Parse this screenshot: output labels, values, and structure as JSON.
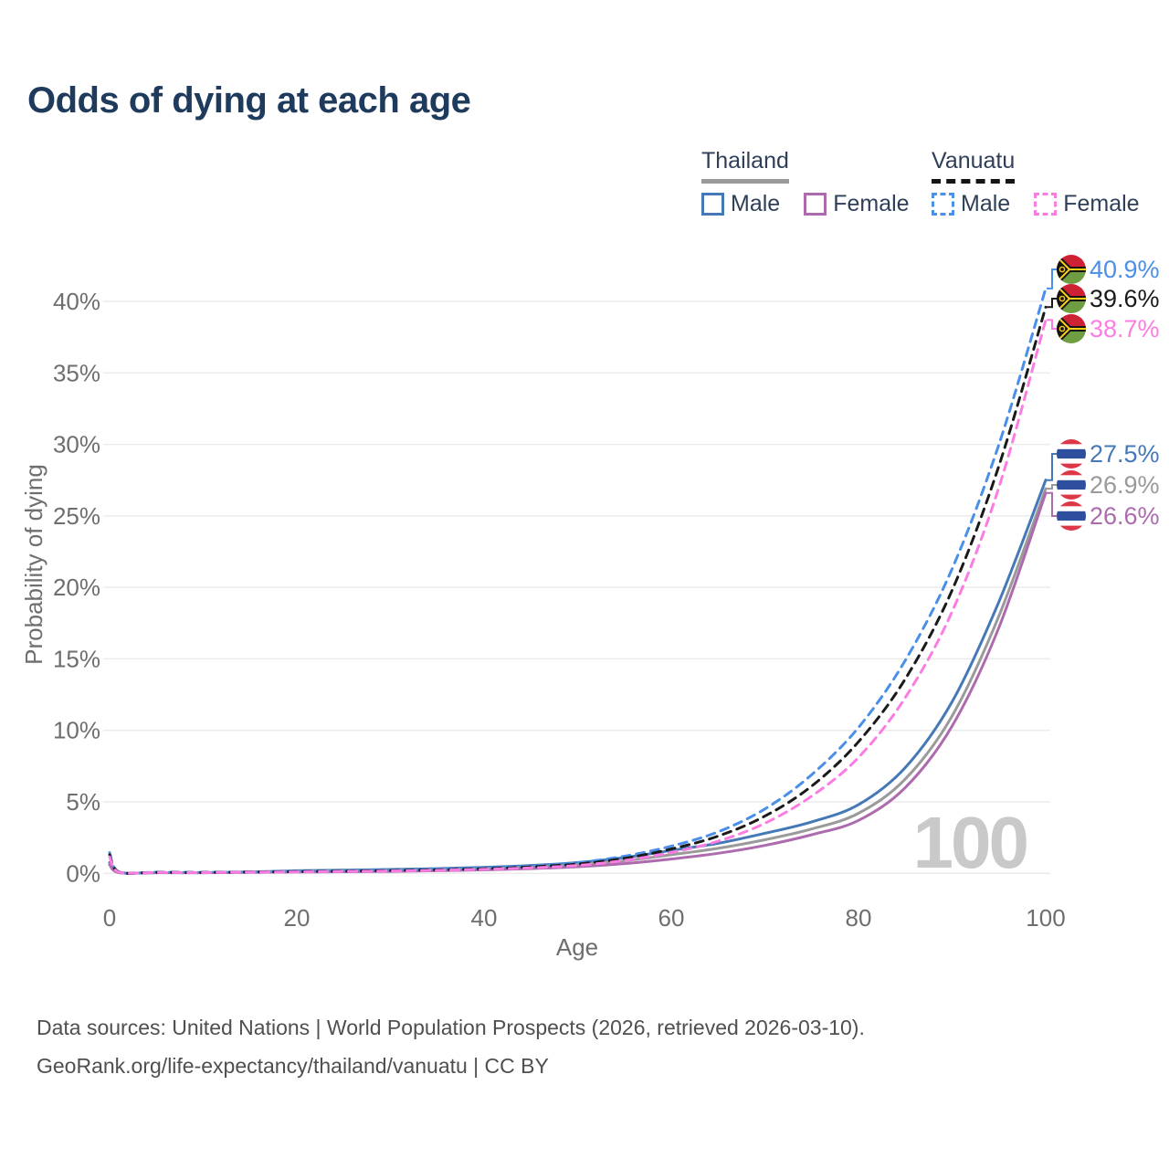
{
  "title": "Odds of dying at each age",
  "legend": {
    "groups": [
      {
        "title": "Thailand",
        "line_style": "solid",
        "underline_color": "#9a9a9a",
        "items": [
          {
            "label": "Male",
            "color": "#4478b6",
            "dashed": false
          },
          {
            "label": "Female",
            "color": "#ad6bae",
            "dashed": false
          }
        ]
      },
      {
        "title": "Vanuatu",
        "line_style": "dashed",
        "underline_color": "#141414",
        "items": [
          {
            "label": "Male",
            "color": "#4a8fe8",
            "dashed": true
          },
          {
            "label": "Female",
            "color": "#fb7ce2",
            "dashed": true
          }
        ]
      }
    ]
  },
  "chart_data": {
    "type": "line",
    "title": "Odds of dying at each age",
    "xlabel": "Age",
    "ylabel": "Probability of dying",
    "xlim": [
      0,
      100
    ],
    "ylim": [
      0,
      42.5
    ],
    "xticks": [
      0,
      20,
      40,
      60,
      80,
      100
    ],
    "yticks_percent": [
      0,
      5,
      10,
      15,
      20,
      25,
      30,
      35,
      40
    ],
    "grid": "horizontal",
    "legend_position": "top-right",
    "watermark": "100",
    "ages": [
      0,
      1,
      5,
      10,
      15,
      20,
      25,
      30,
      35,
      40,
      45,
      50,
      55,
      60,
      65,
      70,
      75,
      80,
      85,
      90,
      95,
      100
    ],
    "series": [
      {
        "name": "Vanuatu Male",
        "country": "vanuatu",
        "sex": "male",
        "color": "#4a8fe8",
        "dashed": true,
        "end_label": "40.9%",
        "values": [
          1.45,
          0.1,
          0.08,
          0.07,
          0.1,
          0.14,
          0.18,
          0.22,
          0.28,
          0.37,
          0.52,
          0.75,
          1.2,
          1.9,
          2.9,
          4.5,
          6.9,
          10.2,
          14.9,
          21.3,
          30.0,
          40.9
        ]
      },
      {
        "name": "Vanuatu Both sexes",
        "country": "vanuatu",
        "sex": "both",
        "color": "#1a1a1a",
        "dashed": true,
        "end_label": "39.6%",
        "values": [
          1.3,
          0.09,
          0.07,
          0.06,
          0.09,
          0.12,
          0.15,
          0.19,
          0.24,
          0.32,
          0.45,
          0.65,
          1.05,
          1.7,
          2.6,
          4.0,
          6.1,
          9.2,
          13.6,
          19.8,
          28.5,
          39.6
        ]
      },
      {
        "name": "Vanuatu Female",
        "country": "vanuatu",
        "sex": "female",
        "color": "#fb7ce2",
        "dashed": true,
        "end_label": "38.7%",
        "values": [
          1.15,
          0.08,
          0.06,
          0.05,
          0.08,
          0.1,
          0.13,
          0.16,
          0.21,
          0.28,
          0.38,
          0.55,
          0.9,
          1.45,
          2.25,
          3.5,
          5.4,
          8.1,
          12.3,
          18.3,
          27.0,
          38.7
        ]
      },
      {
        "name": "Thailand Male",
        "country": "thailand",
        "sex": "male",
        "color": "#4478b6",
        "dashed": false,
        "end_label": "27.5%",
        "values": [
          0.75,
          0.06,
          0.05,
          0.05,
          0.1,
          0.18,
          0.22,
          0.27,
          0.33,
          0.42,
          0.55,
          0.75,
          1.1,
          1.6,
          2.1,
          2.8,
          3.6,
          4.8,
          7.4,
          12.0,
          19.0,
          27.5
        ]
      },
      {
        "name": "Thailand Both sexes",
        "country": "thailand",
        "sex": "both",
        "color": "#9a9a9a",
        "dashed": false,
        "end_label": "26.9%",
        "values": [
          0.65,
          0.05,
          0.05,
          0.04,
          0.08,
          0.14,
          0.17,
          0.21,
          0.26,
          0.33,
          0.44,
          0.6,
          0.88,
          1.3,
          1.75,
          2.35,
          3.1,
          4.2,
          6.6,
          11.0,
          18.0,
          26.9
        ]
      },
      {
        "name": "Thailand Female",
        "country": "thailand",
        "sex": "female",
        "color": "#ad6bae",
        "dashed": false,
        "end_label": "26.6%",
        "values": [
          0.6,
          0.05,
          0.04,
          0.04,
          0.06,
          0.09,
          0.11,
          0.14,
          0.18,
          0.24,
          0.33,
          0.46,
          0.68,
          1.0,
          1.4,
          1.95,
          2.7,
          3.7,
          6.0,
          10.3,
          17.2,
          26.6
        ]
      }
    ]
  },
  "footer": {
    "line1": "Data sources: United Nations | World Population Prospects (2026, retrieved 2026-03-10).",
    "line2": "GeoRank.org/life-expectancy/thailand/vanuatu | CC BY"
  }
}
